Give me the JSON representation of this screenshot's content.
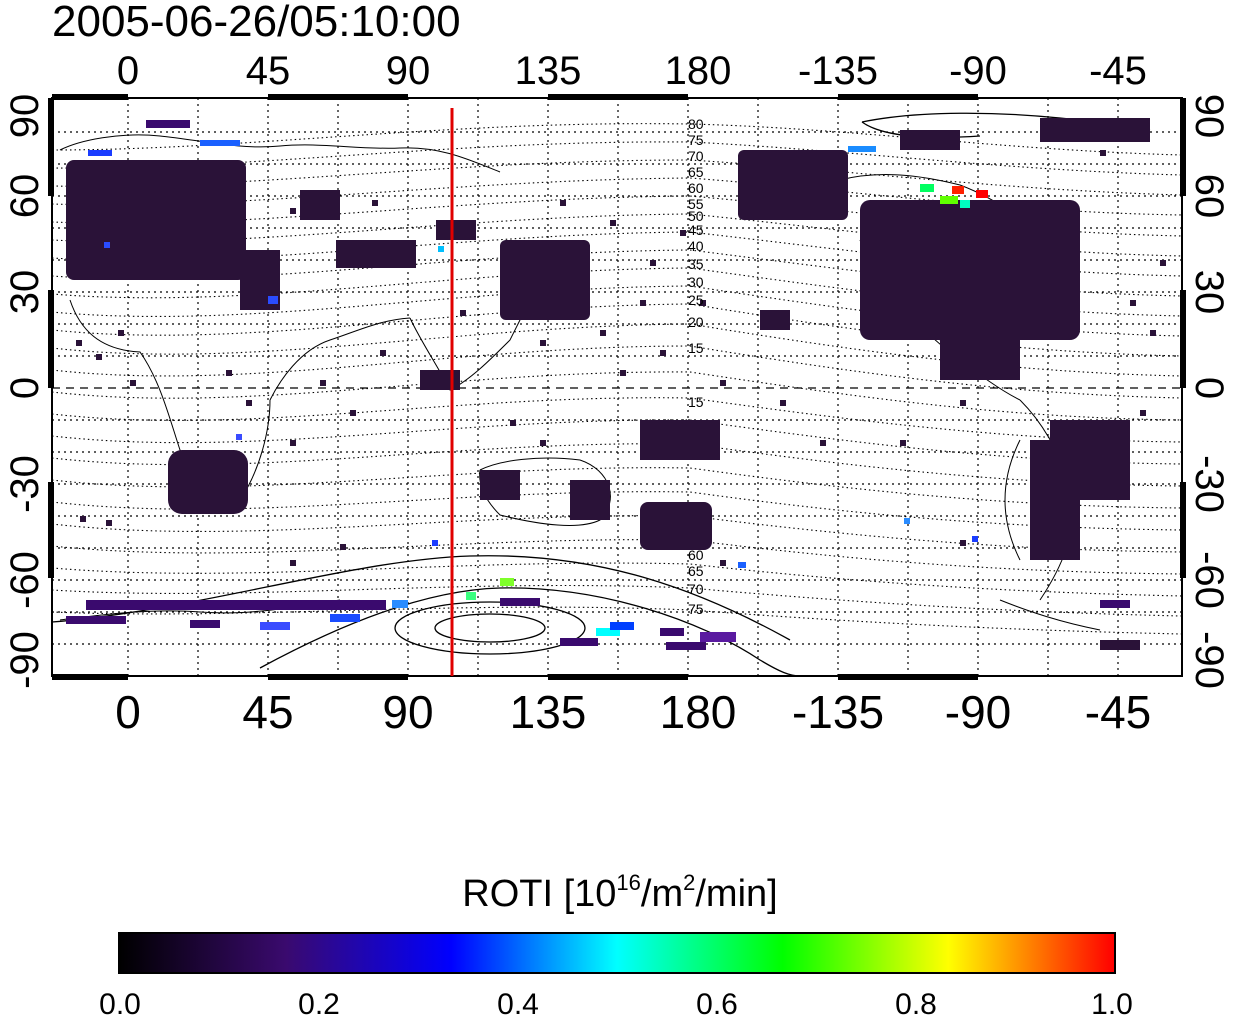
{
  "title": "2005-06-26/05:10:00",
  "map": {
    "top_lon_labels": [
      "0",
      "45",
      "90",
      "135",
      "180",
      "-135",
      "-90",
      "-45"
    ],
    "bottom_lon_labels": [
      "0",
      "45",
      "90",
      "135",
      "180",
      "-135",
      "-90",
      "-45"
    ],
    "left_lat_labels": [
      "90",
      "60",
      "30",
      "0",
      "-30",
      "-60",
      "-90"
    ],
    "right_lat_labels": [
      "90",
      "60",
      "30",
      "0",
      "-30",
      "-60",
      "-90"
    ],
    "contour_labels_north": [
      "80",
      "75",
      "70",
      "65",
      "60",
      "55",
      "50",
      "45",
      "40",
      "35",
      "30",
      "25",
      "20",
      "15"
    ],
    "contour_labels_south": [
      "15",
      "60",
      "65",
      "70",
      "75"
    ],
    "marker_line_color": "#e00000",
    "marker_longitude": "103"
  },
  "colorbar": {
    "title_text": "ROTI  [10",
    "title_sup1": "16",
    "title_mid": "/m",
    "title_sup2": "2",
    "title_end": "/min]",
    "ticks": [
      "0.0",
      "0.2",
      "0.4",
      "0.6",
      "0.8",
      "1.0"
    ],
    "gradient_colors": [
      "#000000",
      "#3a0a6e",
      "#0000ff",
      "#00ffff",
      "#00ff00",
      "#ffff00",
      "#ff0000"
    ]
  }
}
